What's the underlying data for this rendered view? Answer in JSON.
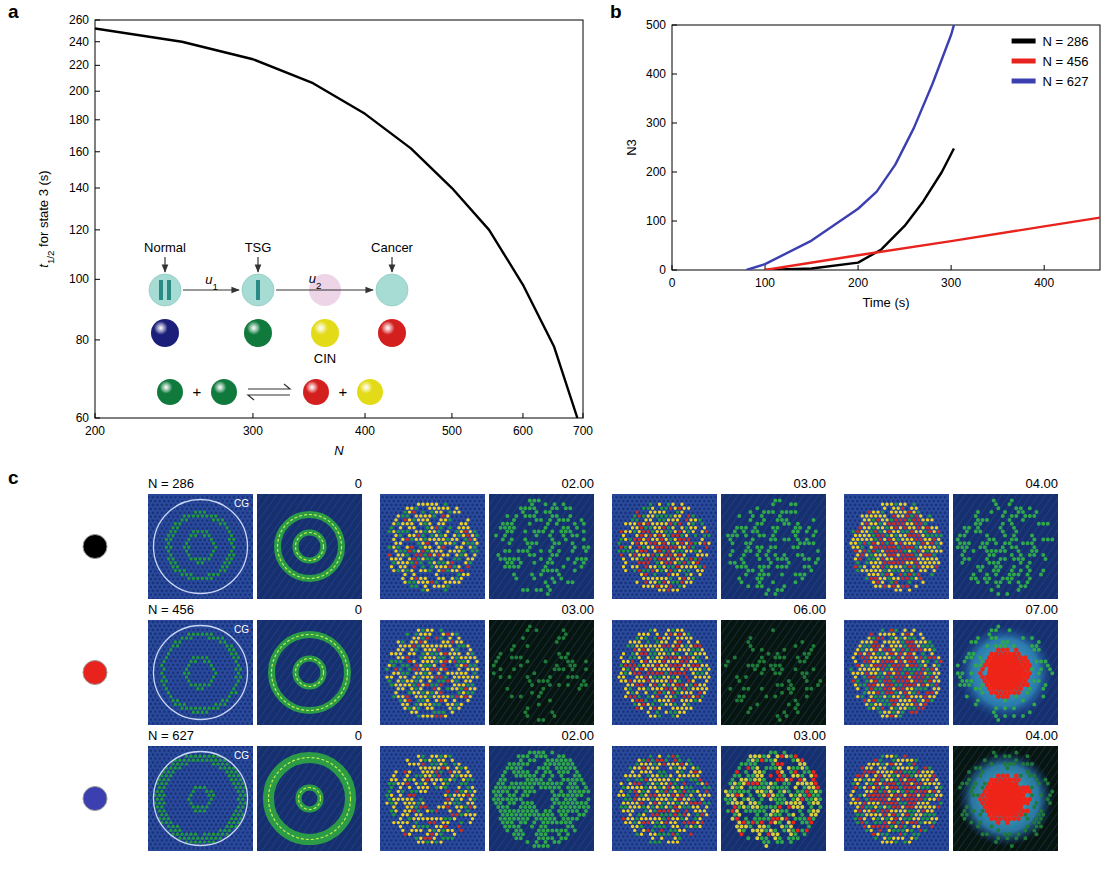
{
  "panel_labels": [
    "a",
    "b",
    "c"
  ],
  "chart_data": [
    {
      "type": "line",
      "x_label": "N",
      "y_label": [
        "t",
        "1/2",
        " for state 3 (s)"
      ],
      "x": [
        200,
        250,
        300,
        350,
        400,
        450,
        500,
        550,
        600,
        650,
        690
      ],
      "values": [
        252,
        240,
        225,
        206,
        184,
        162,
        140,
        120,
        98,
        78,
        60
      ],
      "color": "#000000",
      "xlim": [
        200,
        700
      ],
      "ylim": [
        60,
        260
      ],
      "xticks": [
        200,
        300,
        400,
        500,
        600,
        700
      ],
      "yticks": [
        60,
        80,
        100,
        120,
        140,
        160,
        180,
        200,
        220,
        240,
        260
      ],
      "log": true,
      "annotations": {
        "stages": [
          "Normal",
          "TSG",
          "Cancer"
        ],
        "rates": [
          [
            "u",
            "1"
          ],
          [
            "u",
            "2"
          ]
        ],
        "cin": "CIN",
        "plus": "+"
      }
    },
    {
      "type": "line",
      "x_label": "Time (s)",
      "y_label": "N3",
      "xlim": [
        0,
        460
      ],
      "ylim": [
        0,
        500
      ],
      "xticks": [
        0,
        100,
        200,
        300,
        400
      ],
      "yticks": [
        0,
        100,
        200,
        300,
        400,
        500
      ],
      "legend": "upper right",
      "series": [
        {
          "name": "N = 286",
          "color": "#000000",
          "x": [
            100,
            150,
            200,
            225,
            250,
            270,
            290,
            303
          ],
          "values": [
            0,
            3,
            15,
            42,
            90,
            140,
            200,
            248
          ]
        },
        {
          "name": "N = 456",
          "color": "#e8221c",
          "x": [
            100,
            200,
            300,
            400,
            460
          ],
          "values": [
            0,
            30,
            59,
            89,
            107
          ]
        },
        {
          "name": "N = 627",
          "color": "#3b3fb0",
          "x": [
            80,
            100,
            150,
            200,
            220,
            240,
            260,
            280,
            300,
            303
          ],
          "values": [
            0,
            12,
            60,
            125,
            160,
            215,
            290,
            380,
            480,
            500
          ]
        }
      ]
    }
  ],
  "panel_c": {
    "cg": "CG",
    "rows": [
      {
        "label": "N = 286",
        "color": "#000000",
        "times": [
          "0",
          "02.00",
          "03.00",
          "04.00"
        ]
      },
      {
        "label": "N = 456",
        "color": "#e8221c",
        "times": [
          "0",
          "03.00",
          "06.00",
          "07.00"
        ]
      },
      {
        "label": "N = 627",
        "color": "#3b3fb0",
        "times": [
          "0",
          "02.00",
          "03.00",
          "04.00"
        ]
      }
    ]
  }
}
